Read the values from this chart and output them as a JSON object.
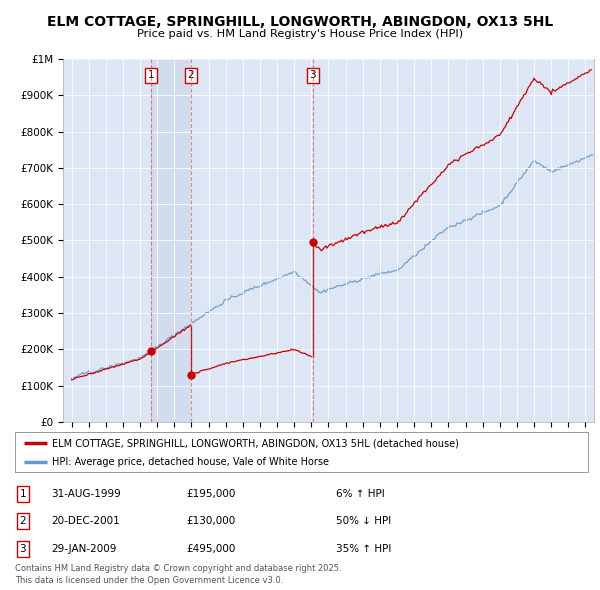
{
  "title": "ELM COTTAGE, SPRINGHILL, LONGWORTH, ABINGDON, OX13 5HL",
  "subtitle": "Price paid vs. HM Land Registry's House Price Index (HPI)",
  "transactions": [
    {
      "num": 1,
      "date_str": "31-AUG-1999",
      "date_x": 1999.66,
      "price": 195000,
      "pct": "6% ↑ HPI"
    },
    {
      "num": 2,
      "date_str": "20-DEC-2001",
      "date_x": 2001.97,
      "price": 130000,
      "pct": "50% ↓ HPI"
    },
    {
      "num": 3,
      "date_str": "29-JAN-2009",
      "date_x": 2009.08,
      "price": 495000,
      "pct": "35% ↑ HPI"
    }
  ],
  "legend_line1": "ELM COTTAGE, SPRINGHILL, LONGWORTH, ABINGDON, OX13 5HL (detached house)",
  "legend_line2": "HPI: Average price, detached house, Vale of White Horse",
  "footer": "Contains HM Land Registry data © Crown copyright and database right 2025.\nThis data is licensed under the Open Government Licence v3.0.",
  "house_color": "#cc0000",
  "hpi_color": "#6699cc",
  "background_color": "#dce6f5",
  "highlight_color": "#ccd8ee",
  "ylim_max": 1000000,
  "yticks": [
    0,
    100000,
    200000,
    300000,
    400000,
    500000,
    600000,
    700000,
    800000,
    900000,
    1000000
  ],
  "ytick_labels": [
    "£0",
    "£100K",
    "£200K",
    "£300K",
    "£400K",
    "£500K",
    "£600K",
    "£700K",
    "£800K",
    "£900K",
    "£1M"
  ],
  "xlim_min": 1994.5,
  "xlim_max": 2025.5
}
